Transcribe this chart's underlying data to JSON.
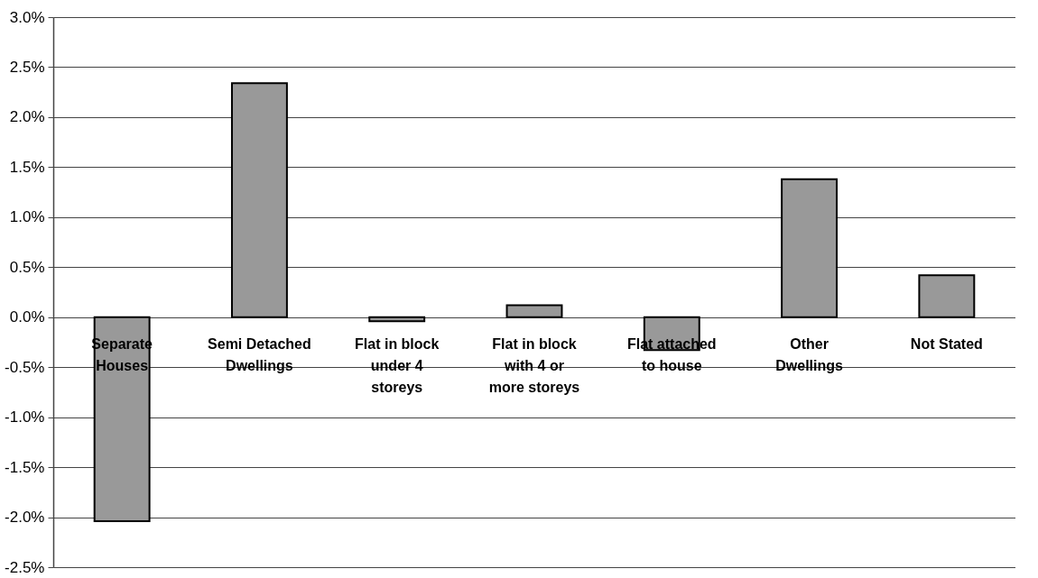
{
  "chart_data": {
    "type": "bar",
    "categories": [
      "Separate Houses",
      "Semi Detached Dwellings",
      "Flat in block under 4 storeys",
      "Flat in block with 4 or more storeys",
      "Flat attached to house",
      "Other Dwellings",
      "Not Stated"
    ],
    "values": [
      -2.04,
      2.34,
      -0.04,
      0.12,
      -0.33,
      1.38,
      0.42
    ],
    "color": "#999999",
    "ylim": [
      -2.5,
      3.0
    ],
    "yticks": [
      {
        "value": -2.5,
        "label": "-2.5%"
      },
      {
        "value": -2.0,
        "label": "-2.0%"
      },
      {
        "value": -1.5,
        "label": "-1.5%"
      },
      {
        "value": -1.0,
        "label": "-1.0%"
      },
      {
        "value": -0.5,
        "label": "-0.5%"
      },
      {
        "value": 0,
        "label": "0.0%"
      },
      {
        "value": 0.5,
        "label": "0.5%"
      },
      {
        "value": 1.0,
        "label": "1.0%"
      },
      {
        "value": 1.5,
        "label": "1.5%"
      },
      {
        "value": 2.0,
        "label": "2.0%"
      },
      {
        "value": 2.5,
        "label": "2.5%"
      },
      {
        "value": 3.0,
        "label": "3.0%"
      }
    ],
    "grid": true
  }
}
